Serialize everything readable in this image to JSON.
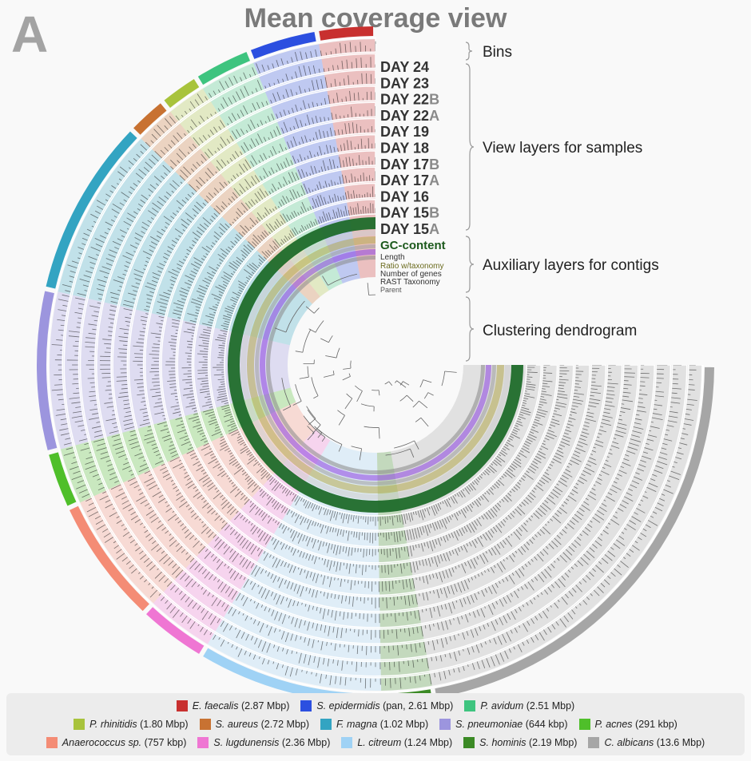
{
  "panel_letter": "A",
  "title": "Mean coverage view",
  "chart_data": {
    "type": "circular-phylogram",
    "title": "Mean coverage view",
    "annotations": {
      "bins": "Bins",
      "view_layers": "View layers for samples",
      "auxiliary_layers": "Auxiliary layers for contigs",
      "dendrogram": "Clustering dendrogram"
    },
    "sample_layers": [
      {
        "name": "DAY 24",
        "main": "DAY 24",
        "suffix": ""
      },
      {
        "name": "DAY 23",
        "main": "DAY 23",
        "suffix": ""
      },
      {
        "name": "DAY 22B",
        "main": "DAY 22",
        "suffix": "B"
      },
      {
        "name": "DAY 22A",
        "main": "DAY 22",
        "suffix": "A"
      },
      {
        "name": "DAY 19",
        "main": "DAY 19",
        "suffix": ""
      },
      {
        "name": "DAY 18",
        "main": "DAY 18",
        "suffix": ""
      },
      {
        "name": "DAY 17B",
        "main": "DAY 17",
        "suffix": "B"
      },
      {
        "name": "DAY 17A",
        "main": "DAY 17",
        "suffix": "A"
      },
      {
        "name": "DAY 16",
        "main": "DAY 16",
        "suffix": ""
      },
      {
        "name": "DAY 15B",
        "main": "DAY 15",
        "suffix": "B"
      },
      {
        "name": "DAY 15A",
        "main": "DAY 15",
        "suffix": "A"
      }
    ],
    "auxiliary_layers": [
      {
        "name": "GC-content",
        "color": "#1d5a1d"
      },
      {
        "name": "Length",
        "color": "#333333"
      },
      {
        "name": "Ratio w/taxonomy",
        "color": "#6b6b1e"
      },
      {
        "name": "Number of genes",
        "color": "#333333"
      },
      {
        "name": "RAST Taxonomy",
        "color": "#333333"
      },
      {
        "name": "Parent",
        "color": "#555555"
      }
    ],
    "bins": [
      {
        "name": "E. faecalis",
        "size": "(2.87 Mbp)",
        "color": "#c8302f",
        "span_deg": 10
      },
      {
        "name": "S. epidermidis",
        "size": "(pan, 2.61 Mbp)",
        "color": "#2c4fe0",
        "span_deg": 12
      },
      {
        "name": "P. avidum",
        "size": "(2.51 Mbp)",
        "color": "#3ec47f",
        "span_deg": 10
      },
      {
        "name": "P. rhinitidis",
        "size": "(1.80 Mbp)",
        "color": "#a8c33c",
        "span_deg": 7
      },
      {
        "name": "S. aureus",
        "size": "(2.72 Mbp)",
        "color": "#c87232",
        "span_deg": 7
      },
      {
        "name": "F. magna",
        "size": "(1.02 Mbp)",
        "color": "#33a4c2",
        "span_deg": 31
      },
      {
        "name": "S. pneumoniae",
        "size": "(644 kbp)",
        "color": "#9c95de",
        "span_deg": 28
      },
      {
        "name": "P. acnes",
        "size": "(291 kbp)",
        "color": "#4fbf2a",
        "span_deg": 10
      },
      {
        "name": "Anaerococcus sp.",
        "size": "(757 kbp)",
        "color": "#f48c75",
        "span_deg": 22
      },
      {
        "name": "S. lugdunensis",
        "size": "(2.36 Mbp)",
        "color": "#ef76d3",
        "span_deg": 12
      },
      {
        "name": "L. citreum",
        "size": "(1.24 Mbp)",
        "color": "#9fd2f5",
        "span_deg": 32
      },
      {
        "name": "S. hominis",
        "size": "(2.19 Mbp)",
        "color": "#3b8a25",
        "span_deg": 9
      },
      {
        "name": "C. albicans",
        "size": "(13.6 Mbp)",
        "color": "#a6a6a6",
        "span_deg": 80
      }
    ]
  }
}
